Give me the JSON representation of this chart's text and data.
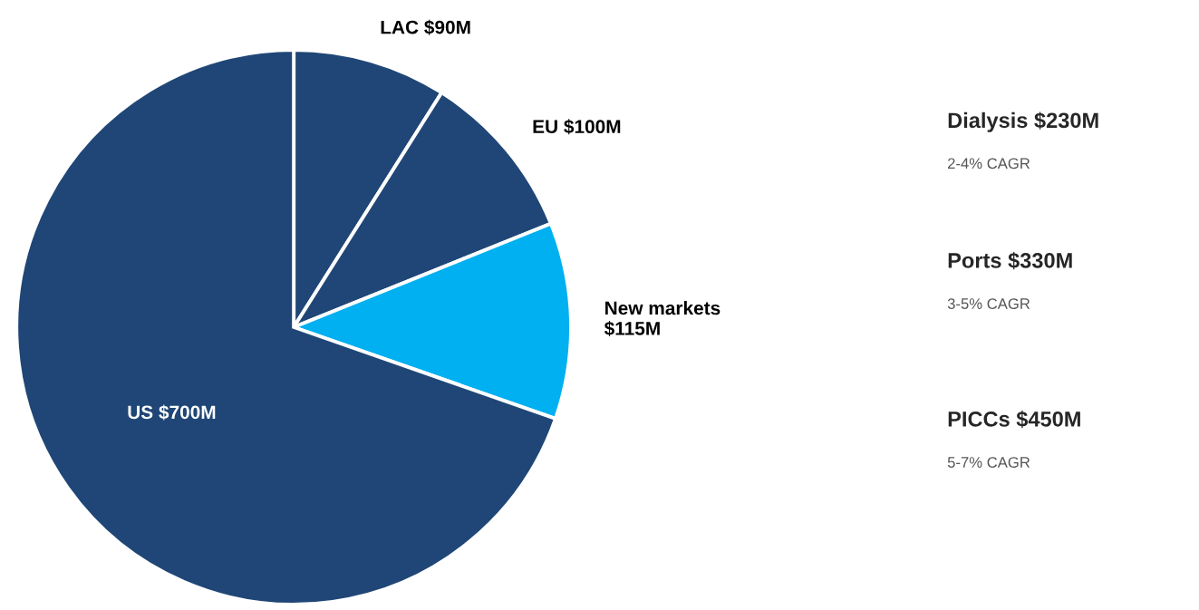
{
  "chart_data": {
    "type": "pie",
    "categories": [
      "LAC",
      "EU",
      "New markets",
      "US"
    ],
    "values": [
      90,
      100,
      115,
      700
    ],
    "value_labels": [
      "$90M",
      "$100M",
      "$115M",
      "$700M"
    ],
    "colors": [
      "#1f4676",
      "#1f4676",
      "#00b0f0",
      "#1f4676"
    ],
    "annotations": [
      "Dialysis $230M",
      "2-4% CAGR",
      "Ports $330M",
      "3-5% CAGR",
      "PICCs $450M",
      "5-7% CAGR"
    ]
  }
}
